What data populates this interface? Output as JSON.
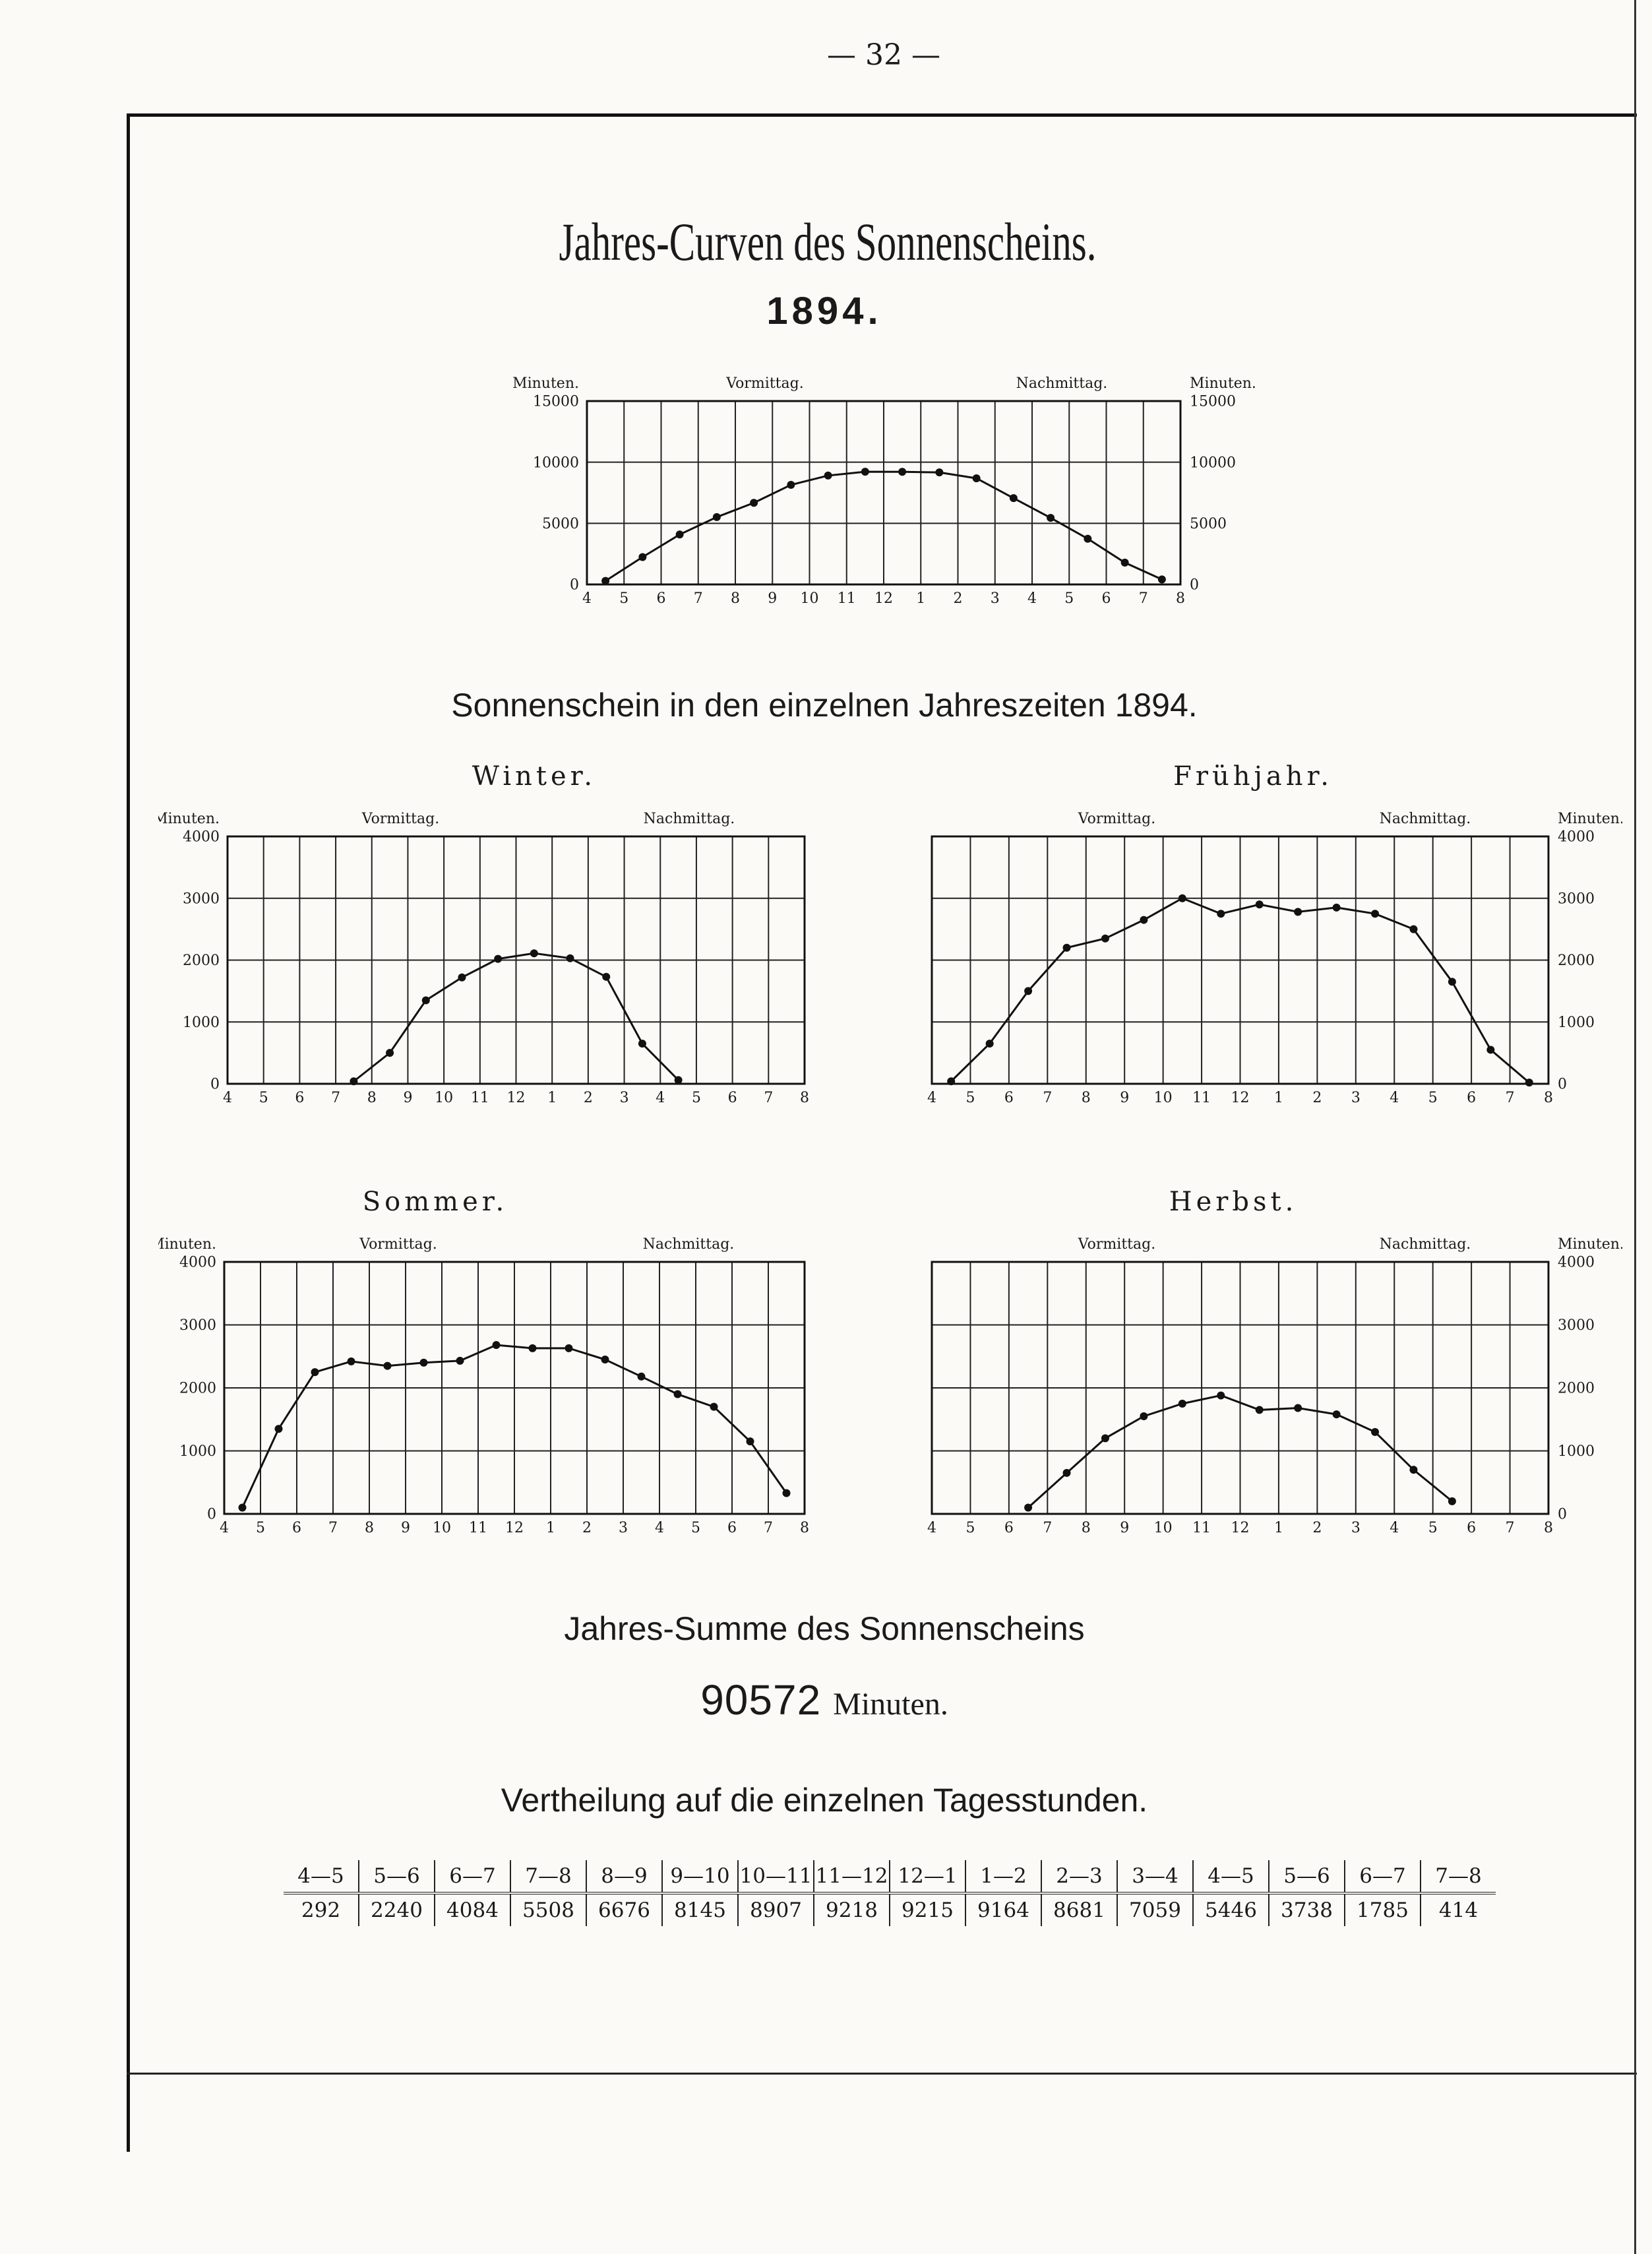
{
  "page_number": "— 32 —",
  "title": "Jahres-Curven des Sonnenscheins.",
  "year": "1894.",
  "seasons_heading": "Sonnenschein in den einzelnen Jahreszeiten 1894.",
  "sum_heading": "Jahres-Summe des Sonnenscheins",
  "sum_value": "90572",
  "sum_unit": "Minuten.",
  "distribution_heading": "Vertheilung auf die einzelnen Tagesstunden.",
  "distribution": {
    "headers": [
      "4—5",
      "5—6",
      "6—7",
      "7—8",
      "8—9",
      "9—10",
      "10—11",
      "11—12",
      "12—1",
      "1—2",
      "2—3",
      "3—4",
      "4—5",
      "5—6",
      "6—7",
      "7—8"
    ],
    "values": [
      "292",
      "2240",
      "4084",
      "5508",
      "6676",
      "8145",
      "8907",
      "9218",
      "9215",
      "9164",
      "8681",
      "7059",
      "5446",
      "3738",
      "1785",
      "414"
    ]
  },
  "chart_data": [
    {
      "type": "line",
      "title": "",
      "ylabel_left": "Minuten.",
      "ylabel_right": "Minuten.",
      "annotations": [
        "Vormittag.",
        "Nachmittag."
      ],
      "x_ticks": [
        "4",
        "5",
        "6",
        "7",
        "8",
        "9",
        "10",
        "11",
        "12",
        "1",
        "2",
        "3",
        "4",
        "5",
        "6",
        "7",
        "8"
      ],
      "y_ticks": [
        "0",
        "5000",
        "10000",
        "15000"
      ],
      "ylim": [
        0,
        15000
      ],
      "xlim": [
        4,
        20
      ],
      "grid": true,
      "x": [
        4.5,
        5.5,
        6.5,
        7.5,
        8.5,
        9.5,
        10.5,
        11.5,
        12.5,
        13.5,
        14.5,
        15.5,
        16.5,
        17.5,
        18.5,
        19.5
      ],
      "y": [
        292,
        2240,
        4084,
        5508,
        6676,
        8145,
        8907,
        9218,
        9215,
        9164,
        8681,
        7059,
        5446,
        3738,
        1785,
        414
      ]
    },
    {
      "type": "line",
      "title": "Winter.",
      "ylabel_left": "Minuten.",
      "annotations": [
        "Vormittag.",
        "Nachmittag."
      ],
      "x_ticks": [
        "4",
        "5",
        "6",
        "7",
        "8",
        "9",
        "10",
        "11",
        "12",
        "1",
        "2",
        "3",
        "4",
        "5",
        "6",
        "7",
        "8"
      ],
      "y_ticks": [
        "0",
        "1000",
        "2000",
        "3000",
        "4000"
      ],
      "y_axis_side": "left",
      "ylim": [
        0,
        4000
      ],
      "xlim": [
        4,
        20
      ],
      "grid": true,
      "x": [
        7.5,
        8.5,
        9.5,
        10.5,
        11.5,
        12.5,
        13.5,
        14.5,
        15.5,
        16.5
      ],
      "y": [
        40,
        500,
        1350,
        1720,
        2020,
        2110,
        2030,
        1730,
        650,
        60
      ]
    },
    {
      "type": "line",
      "title": "Frühjahr.",
      "ylabel_right": "Minuten.",
      "annotations": [
        "Vormittag.",
        "Nachmittag."
      ],
      "x_ticks": [
        "4",
        "5",
        "6",
        "7",
        "8",
        "9",
        "10",
        "11",
        "12",
        "1",
        "2",
        "3",
        "4",
        "5",
        "6",
        "7",
        "8"
      ],
      "y_ticks": [
        "0",
        "1000",
        "2000",
        "3000",
        "4000"
      ],
      "y_axis_side": "right",
      "ylim": [
        0,
        4000
      ],
      "xlim": [
        4,
        20
      ],
      "grid": true,
      "x": [
        4.5,
        5.5,
        6.5,
        7.5,
        8.5,
        9.5,
        10.5,
        11.5,
        12.5,
        13.5,
        14.5,
        15.5,
        16.5,
        17.5,
        18.5,
        19.5
      ],
      "y": [
        40,
        650,
        1500,
        2200,
        2350,
        2650,
        3000,
        2750,
        2900,
        2780,
        2850,
        2750,
        2500,
        1650,
        550,
        20
      ]
    },
    {
      "type": "line",
      "title": "Sommer.",
      "ylabel_left": "Minuten.",
      "annotations": [
        "Vormittag.",
        "Nachmittag."
      ],
      "x_ticks": [
        "4",
        "5",
        "6",
        "7",
        "8",
        "9",
        "10",
        "11",
        "12",
        "1",
        "2",
        "3",
        "4",
        "5",
        "6",
        "7",
        "8"
      ],
      "y_ticks": [
        "0",
        "1000",
        "2000",
        "3000",
        "4000"
      ],
      "y_axis_side": "left",
      "ylim": [
        0,
        4000
      ],
      "xlim": [
        4,
        20
      ],
      "grid": true,
      "x": [
        4.5,
        5.5,
        6.5,
        7.5,
        8.5,
        9.5,
        10.5,
        11.5,
        12.5,
        13.5,
        14.5,
        15.5,
        16.5,
        17.5,
        18.5,
        19.5
      ],
      "y": [
        100,
        1350,
        2250,
        2420,
        2350,
        2400,
        2430,
        2680,
        2630,
        2630,
        2450,
        2180,
        1900,
        1700,
        1150,
        330
      ]
    },
    {
      "type": "line",
      "title": "Herbst.",
      "ylabel_right": "Minuten.",
      "annotations": [
        "Vormittag.",
        "Nachmittag."
      ],
      "x_ticks": [
        "4",
        "5",
        "6",
        "7",
        "8",
        "9",
        "10",
        "11",
        "12",
        "1",
        "2",
        "3",
        "4",
        "5",
        "6",
        "7",
        "8"
      ],
      "y_ticks": [
        "0",
        "1000",
        "2000",
        "3000",
        "4000"
      ],
      "y_axis_side": "right",
      "ylim": [
        0,
        4000
      ],
      "xlim": [
        4,
        20
      ],
      "grid": true,
      "x": [
        6.5,
        7.5,
        8.5,
        9.5,
        10.5,
        11.5,
        12.5,
        13.5,
        14.5,
        15.5,
        16.5,
        17.5
      ],
      "y": [
        100,
        650,
        1200,
        1550,
        1750,
        1880,
        1650,
        1680,
        1580,
        1300,
        700,
        200
      ]
    }
  ]
}
